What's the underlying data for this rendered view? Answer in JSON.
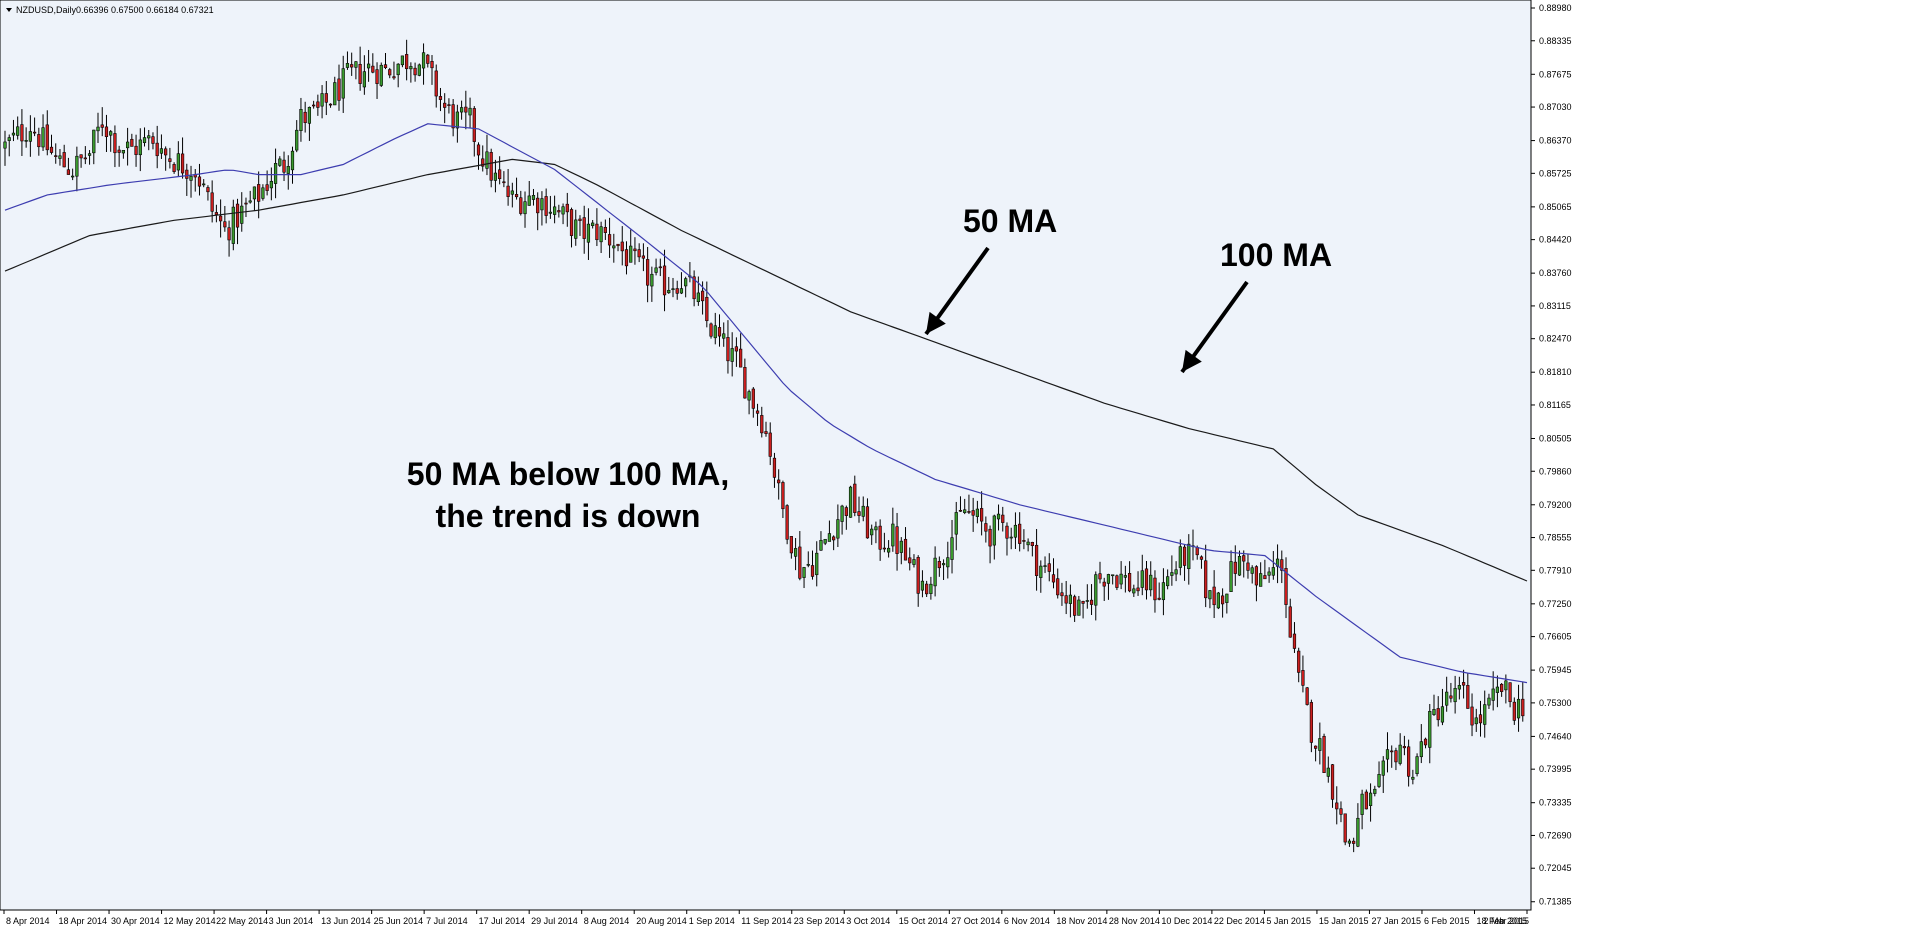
{
  "header": {
    "arrow_icon": "triangle-down-icon",
    "symbol_label": "NZDUSD,Daily",
    "ohlc": "0.66396 0.67500 0.66184 0.67321"
  },
  "chart_data": {
    "type": "candlestick",
    "title": "NZDUSD,Daily",
    "xlabel": "",
    "ylabel": "",
    "ylim": [
      0.7138,
      0.8898
    ],
    "grid": false,
    "background": "#eef3fa",
    "up_color": "#3a9a2e",
    "down_color": "#cc1f1f",
    "ma50_color": "#3d3db0",
    "ma100_color": "#1a1a1a",
    "y_ticks": [
      "0.88980",
      "0.88335",
      "0.87675",
      "0.87030",
      "0.86370",
      "0.85725",
      "0.85065",
      "0.84420",
      "0.83760",
      "0.83115",
      "0.82470",
      "0.81810",
      "0.81165",
      "0.80505",
      "0.79860",
      "0.79200",
      "0.78555",
      "0.77910",
      "0.77250",
      "0.76605",
      "0.75945",
      "0.75300",
      "0.74640",
      "0.73995",
      "0.73335",
      "0.72690",
      "0.72045",
      "0.71385"
    ],
    "x_ticks": [
      "8 Apr 2014",
      "18 Apr 2014",
      "30 Apr 2014",
      "12 May 2014",
      "22 May 2014",
      "3 Jun 2014",
      "13 Jun 2014",
      "25 Jun 2014",
      "7 Jul 2014",
      "17 Jul 2014",
      "29 Jul 2014",
      "8 Aug 2014",
      "20 Aug 2014",
      "1 Sep 2014",
      "11 Sep 2014",
      "23 Sep 2014",
      "3 Oct 2014",
      "15 Oct 2014",
      "27 Oct 2014",
      "6 Nov 2014",
      "18 Nov 2014",
      "28 Nov 2014",
      "10 Dec 2014",
      "22 Dec 2014",
      "5 Jan 2015",
      "15 Jan 2015",
      "27 Jan 2015",
      "6 Feb 2015",
      "18 Feb 2015",
      "2 Mar 2015"
    ],
    "close_path": [
      [
        0,
        0.8625
      ],
      [
        6,
        0.8668
      ],
      [
        12,
        0.86
      ],
      [
        16,
        0.858
      ],
      [
        20,
        0.8612
      ],
      [
        23,
        0.8676
      ],
      [
        27,
        0.8625
      ],
      [
        30,
        0.862
      ],
      [
        35,
        0.864
      ],
      [
        38,
        0.861
      ],
      [
        42,
        0.859
      ],
      [
        45,
        0.858
      ],
      [
        49,
        0.85
      ],
      [
        52,
        0.846
      ],
      [
        56,
        0.8495
      ],
      [
        60,
        0.853
      ],
      [
        64,
        0.858
      ],
      [
        66,
        0.859
      ],
      [
        70,
        0.868
      ],
      [
        74,
        0.8692
      ],
      [
        77,
        0.872
      ],
      [
        81,
        0.876
      ],
      [
        86,
        0.878
      ],
      [
        90,
        0.8775
      ],
      [
        94,
        0.8793
      ],
      [
        96,
        0.88
      ],
      [
        99,
        0.8786
      ],
      [
        101,
        0.8755
      ],
      [
        104,
        0.87
      ],
      [
        107,
        0.8675
      ],
      [
        110,
        0.8673
      ],
      [
        112,
        0.8622
      ],
      [
        116,
        0.856
      ],
      [
        120,
        0.852
      ],
      [
        124,
        0.8526
      ],
      [
        128,
        0.8515
      ],
      [
        132,
        0.8486
      ],
      [
        136,
        0.8456
      ],
      [
        140,
        0.846
      ],
      [
        144,
        0.844
      ],
      [
        148,
        0.84
      ],
      [
        152,
        0.837
      ],
      [
        156,
        0.8355
      ],
      [
        160,
        0.8363
      ],
      [
        163,
        0.8335
      ],
      [
        166,
        0.828
      ],
      [
        170,
        0.823
      ],
      [
        173,
        0.82
      ],
      [
        176,
        0.814
      ],
      [
        179,
        0.809
      ],
      [
        181,
        0.803
      ],
      [
        183,
        0.794
      ],
      [
        185,
        0.788
      ],
      [
        188,
        0.7795
      ],
      [
        191,
        0.7806
      ],
      [
        194,
        0.785
      ],
      [
        197,
        0.7895
      ],
      [
        200,
        0.793
      ],
      [
        203,
        0.789
      ],
      [
        206,
        0.7848
      ],
      [
        210,
        0.7856
      ],
      [
        214,
        0.78
      ],
      [
        217,
        0.776
      ],
      [
        220,
        0.78
      ],
      [
        224,
        0.786
      ],
      [
        227,
        0.791
      ],
      [
        230,
        0.7888
      ],
      [
        233,
        0.7866
      ],
      [
        236,
        0.788
      ],
      [
        240,
        0.787
      ],
      [
        243,
        0.782
      ],
      [
        246,
        0.779
      ],
      [
        249,
        0.776
      ],
      [
        252,
        0.7725
      ],
      [
        255,
        0.77
      ],
      [
        258,
        0.777
      ],
      [
        261,
        0.779
      ],
      [
        264,
        0.7778
      ],
      [
        267,
        0.7756
      ],
      [
        270,
        0.7765
      ],
      [
        273,
        0.7746
      ],
      [
        276,
        0.779
      ],
      [
        279,
        0.782
      ],
      [
        282,
        0.7811
      ],
      [
        285,
        0.7732
      ],
      [
        288,
        0.775
      ],
      [
        291,
        0.78
      ],
      [
        294,
        0.781
      ],
      [
        296,
        0.776
      ],
      [
        299,
        0.778
      ],
      [
        302,
        0.781
      ],
      [
        304,
        0.766
      ],
      [
        306,
        0.757
      ],
      [
        309,
        0.748
      ],
      [
        312,
        0.742
      ],
      [
        315,
        0.734
      ],
      [
        317,
        0.726
      ],
      [
        319,
        0.726
      ],
      [
        321,
        0.733
      ],
      [
        324,
        0.734
      ],
      [
        327,
        0.741
      ],
      [
        330,
        0.745
      ],
      [
        333,
        0.739
      ],
      [
        336,
        0.747
      ],
      [
        339,
        0.752
      ],
      [
        342,
        0.754
      ],
      [
        345,
        0.7545
      ],
      [
        348,
        0.749
      ],
      [
        351,
        0.752
      ],
      [
        354,
        0.756
      ],
      [
        357,
        0.752
      ],
      [
        360,
        0.7532
      ]
    ],
    "ma50_path": [
      [
        0,
        0.85
      ],
      [
        10,
        0.853
      ],
      [
        25,
        0.855
      ],
      [
        45,
        0.857
      ],
      [
        53,
        0.858
      ],
      [
        60,
        0.857
      ],
      [
        70,
        0.857
      ],
      [
        80,
        0.859
      ],
      [
        92,
        0.864
      ],
      [
        100,
        0.867
      ],
      [
        112,
        0.866
      ],
      [
        130,
        0.858
      ],
      [
        150,
        0.845
      ],
      [
        165,
        0.835
      ],
      [
        175,
        0.825
      ],
      [
        185,
        0.815
      ],
      [
        195,
        0.808
      ],
      [
        205,
        0.803
      ],
      [
        220,
        0.797
      ],
      [
        240,
        0.792
      ],
      [
        255,
        0.789
      ],
      [
        270,
        0.786
      ],
      [
        285,
        0.783
      ],
      [
        298,
        0.782
      ],
      [
        310,
        0.774
      ],
      [
        320,
        0.768
      ],
      [
        330,
        0.762
      ],
      [
        345,
        0.759
      ],
      [
        360,
        0.757
      ]
    ],
    "ma100_path": [
      [
        0,
        0.838
      ],
      [
        20,
        0.845
      ],
      [
        40,
        0.848
      ],
      [
        60,
        0.85
      ],
      [
        80,
        0.853
      ],
      [
        100,
        0.857
      ],
      [
        120,
        0.86
      ],
      [
        130,
        0.859
      ],
      [
        140,
        0.855
      ],
      [
        160,
        0.846
      ],
      [
        180,
        0.838
      ],
      [
        200,
        0.83
      ],
      [
        220,
        0.824
      ],
      [
        240,
        0.818
      ],
      [
        260,
        0.812
      ],
      [
        280,
        0.807
      ],
      [
        300,
        0.803
      ],
      [
        310,
        0.796
      ],
      [
        320,
        0.79
      ],
      [
        340,
        0.784
      ],
      [
        360,
        0.777
      ]
    ],
    "ma_bias_50": -0.004,
    "ma_bias_100": 0.0
  },
  "annotations": {
    "label_50": "50 MA",
    "label_100": "100 MA",
    "trend_line1": "50 MA below 100 MA,",
    "trend_line2": "the trend is down"
  }
}
